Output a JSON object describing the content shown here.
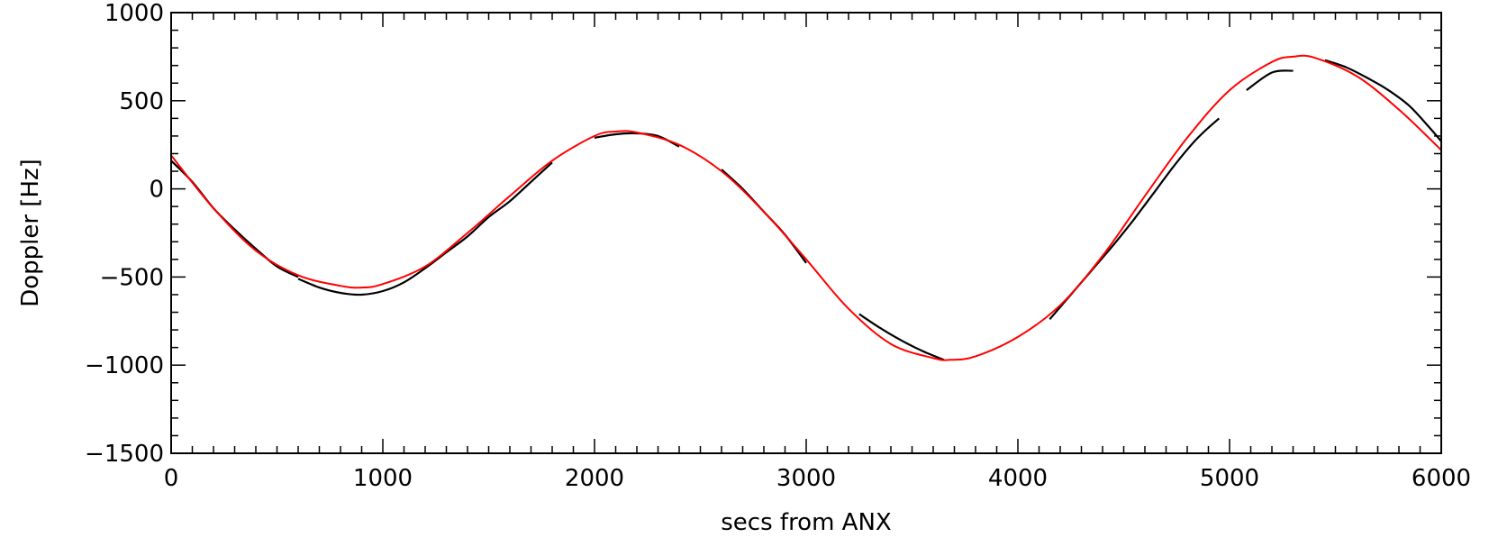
{
  "chart_data": {
    "type": "line",
    "title": "",
    "xlabel": "secs from ANX",
    "ylabel": "Doppler [Hz]",
    "xlim": [
      0,
      6000
    ],
    "ylim": [
      -1500,
      1000
    ],
    "x_ticks": [
      0,
      1000,
      2000,
      3000,
      4000,
      5000,
      6000
    ],
    "y_ticks": [
      1000,
      500,
      0,
      -500,
      -1000,
      -1500
    ],
    "x_tick_labels": [
      "0",
      "1000",
      "2000",
      "3000",
      "4000",
      "5000",
      "6000"
    ],
    "y_tick_labels": [
      "1000",
      "500",
      "0",
      "−500",
      "−1000",
      "−1500"
    ],
    "grid": false,
    "legend": "none",
    "series": [
      {
        "color": "#ff0000",
        "style": "model",
        "x": [
          0,
          200,
          400,
          600,
          800,
          900,
          1000,
          1200,
          1400,
          1600,
          1800,
          2000,
          2100,
          2200,
          2400,
          2600,
          2800,
          3000,
          3200,
          3400,
          3600,
          3680,
          3800,
          4000,
          4200,
          4400,
          4600,
          4800,
          5000,
          5200,
          5300,
          5400,
          5600,
          5800,
          6000
        ],
        "y": [
          190,
          -110,
          -350,
          -490,
          -550,
          -560,
          -540,
          -440,
          -250,
          -40,
          160,
          300,
          325,
          320,
          250,
          100,
          -130,
          -400,
          -680,
          -880,
          -960,
          -970,
          -950,
          -840,
          -660,
          -380,
          -40,
          290,
          560,
          720,
          750,
          745,
          640,
          450,
          220
        ]
      },
      {
        "color": "#000000",
        "style": "measured",
        "segments": [
          {
            "x": [
              0,
              100,
              200,
              300,
              400,
              500,
              600
            ],
            "y": [
              160,
              40,
              -110,
              -230,
              -340,
              -440,
              -500
            ]
          },
          {
            "x": [
              600,
              700,
              800,
              900,
              1000,
              1100,
              1200,
              1300,
              1400,
              1500,
              1600,
              1700,
              1800
            ],
            "y": [
              -510,
              -560,
              -590,
              -600,
              -580,
              -530,
              -450,
              -360,
              -270,
              -160,
              -70,
              40,
              150
            ]
          },
          {
            "x": [
              2000,
              2100,
              2200,
              2300,
              2400
            ],
            "y": [
              290,
              310,
              315,
              300,
              240
            ]
          },
          {
            "x": [
              2600,
              2700,
              2800,
              2900,
              3000
            ],
            "y": [
              110,
              0,
              -130,
              -260,
              -420
            ]
          },
          {
            "x": [
              3250,
              3350,
              3450,
              3550,
              3650
            ],
            "y": [
              -710,
              -790,
              -860,
              -920,
              -970
            ]
          },
          {
            "x": [
              4150,
              4250,
              4350,
              4450,
              4550,
              4650,
              4750,
              4850,
              4950
            ],
            "y": [
              -740,
              -600,
              -460,
              -320,
              -170,
              -10,
              150,
              290,
              400
            ]
          },
          {
            "x": [
              5080,
              5200,
              5300
            ],
            "y": [
              560,
              660,
              670
            ]
          },
          {
            "x": [
              5450,
              5550,
              5650,
              5750,
              5850,
              5950,
              6000
            ],
            "y": [
              730,
              690,
              630,
              560,
              470,
              340,
              270
            ]
          }
        ]
      }
    ]
  }
}
